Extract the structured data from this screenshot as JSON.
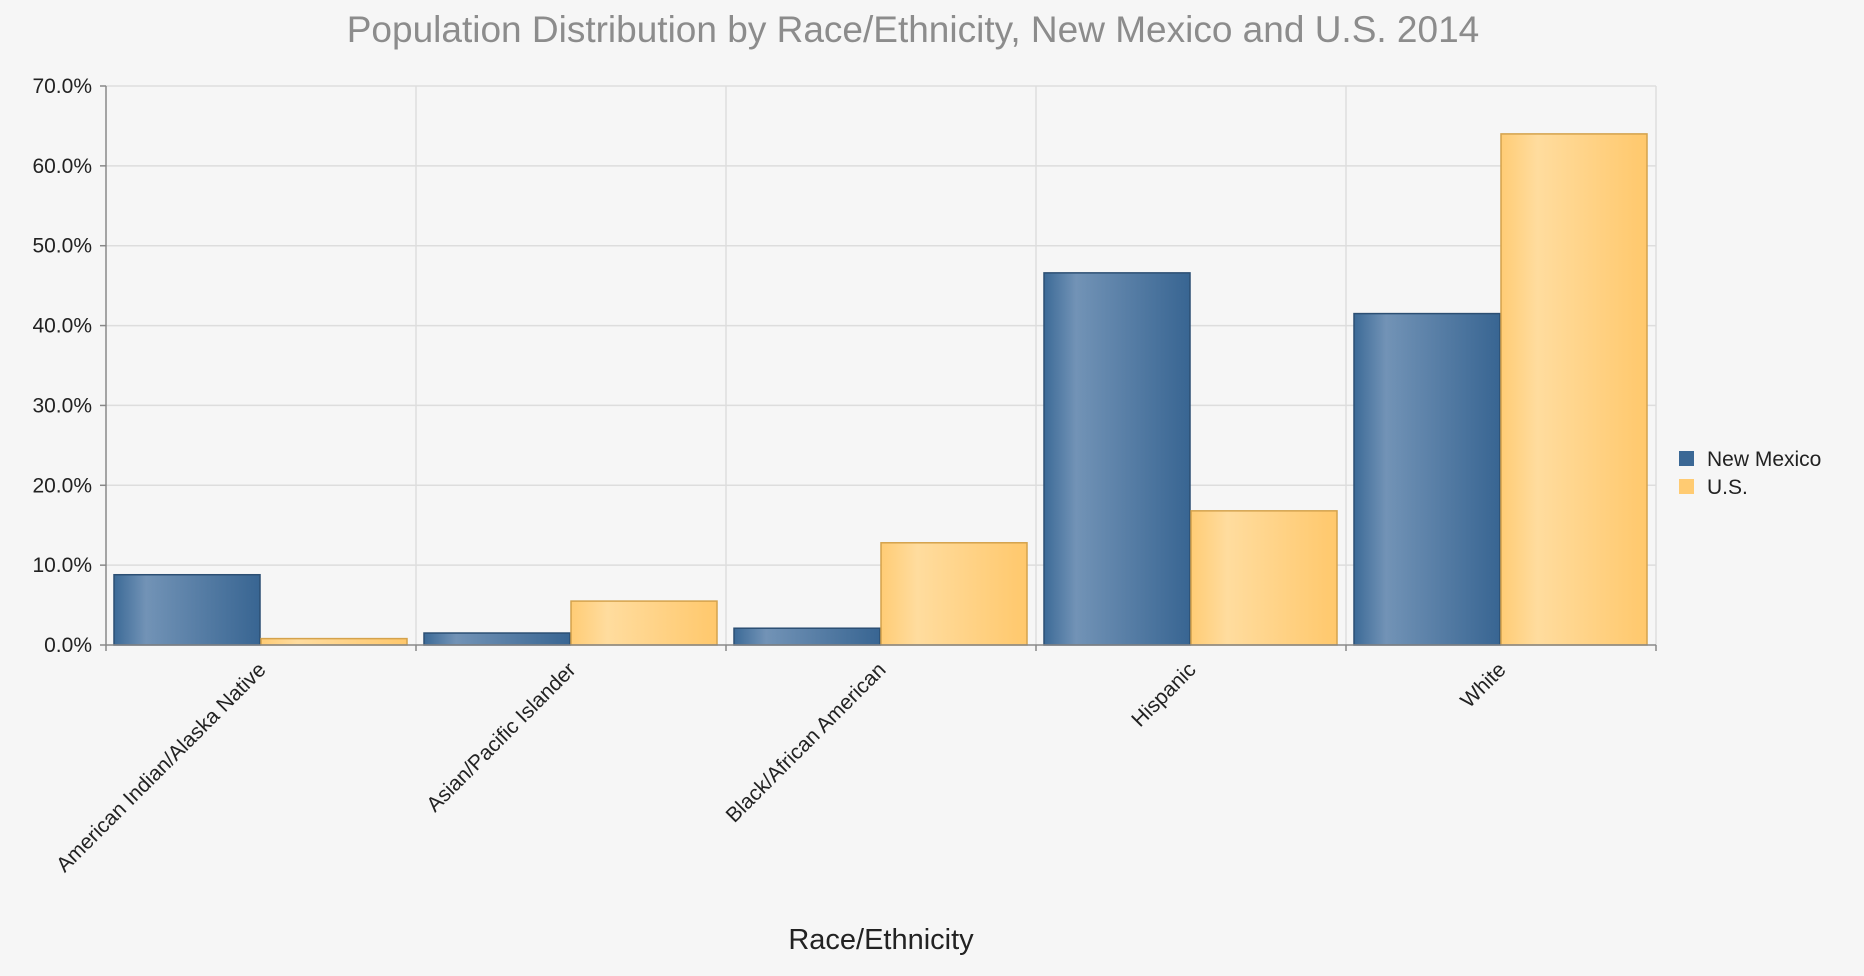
{
  "chart_data": {
    "type": "bar",
    "title": "Population Distribution by Race/Ethnicity, New Mexico and U.S. 2014",
    "xlabel": "Race/Ethnicity",
    "ylabel": "",
    "categories": [
      "American Indian/Alaska Native",
      "Asian/Pacific Islander",
      "Black/African American",
      "Hispanic",
      "White"
    ],
    "series": [
      {
        "name": "New Mexico",
        "color": "#3b6895",
        "values": [
          8.8,
          1.5,
          2.1,
          46.6,
          41.5
        ]
      },
      {
        "name": "U.S.",
        "color": "#ffcb72",
        "values": [
          0.8,
          5.5,
          12.8,
          16.8,
          64.0
        ]
      }
    ],
    "ylim": [
      0,
      70
    ],
    "y_ticks": [
      "0.0%",
      "10.0%",
      "20.0%",
      "30.0%",
      "40.0%",
      "50.0%",
      "60.0%",
      "70.0%"
    ],
    "grid": true,
    "legend_position": "right"
  }
}
